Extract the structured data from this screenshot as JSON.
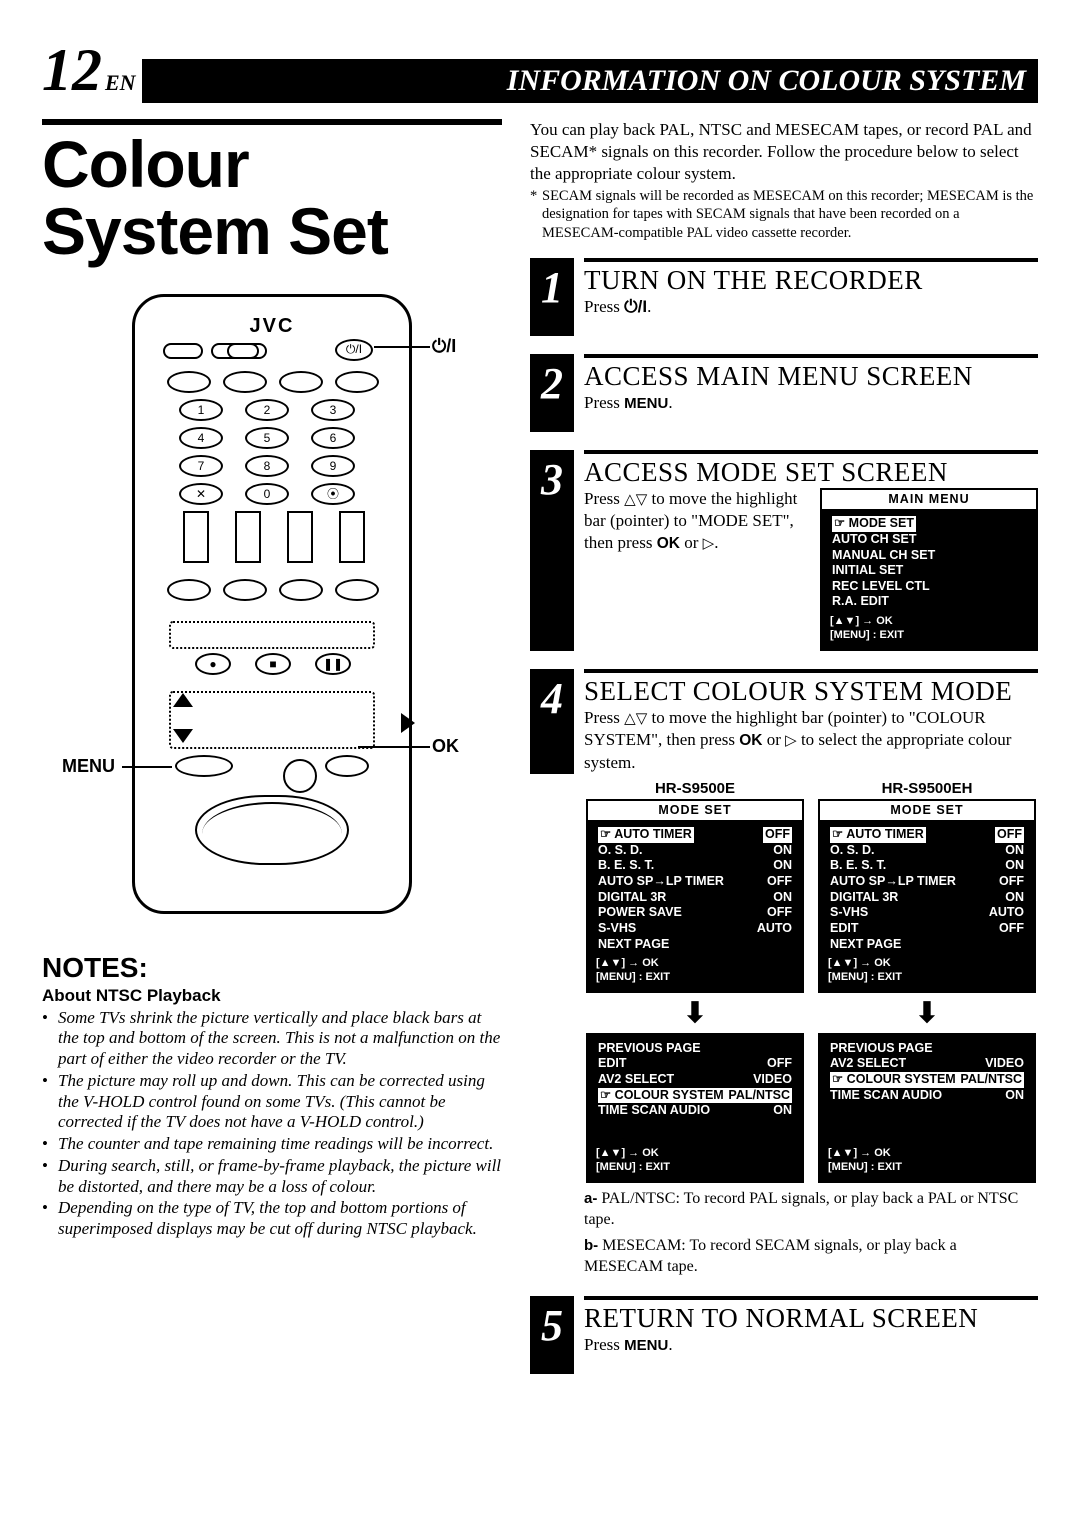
{
  "header": {
    "page_num": "12",
    "page_suffix": "EN",
    "title_bar": "INFORMATION ON COLOUR SYSTEM"
  },
  "left": {
    "main_title_l1": "Colour",
    "main_title_l2": "System Set",
    "brand": "JVC",
    "callout_power": "⏻/I",
    "callout_ok": "OK",
    "callout_menu": "MENU",
    "numpad": [
      "1",
      "2",
      "3",
      "4",
      "5",
      "6",
      "7",
      "8",
      "9",
      "✕",
      "0",
      "⦿"
    ],
    "notes_heading": "NOTES:",
    "notes_sub": "About NTSC Playback",
    "notes": [
      "Some TVs shrink the picture vertically and place black bars at the top and bottom of the screen. This is not a malfunction on the part of either the video recorder or the TV.",
      "The picture may roll up and down. This can be corrected using the V-HOLD control found on some TVs. (This cannot be corrected if the TV does not have a V-HOLD control.)",
      "The counter and tape remaining time readings will be incorrect.",
      "During search, still, or frame-by-frame playback, the picture will be distorted, and there may be a loss of colour.",
      "Depending on the type of TV, the top and bottom portions of superimposed displays may be cut off during NTSC playback."
    ]
  },
  "right": {
    "intro": "You can play back PAL, NTSC and MESECAM tapes, or record PAL and SECAM* signals on this recorder. Follow the procedure below to select the appropriate colour system.",
    "footnote": "SECAM signals will be recorded as MESECAM on this recorder; MESECAM is the designation for tapes with SECAM signals that have been recorded on a MESECAM-compatible PAL video cassette recorder.",
    "step1": {
      "num": "1",
      "title": "TURN ON THE RECORDER",
      "text_pre": "Press ",
      "icon": "⏻/I",
      "text_post": "."
    },
    "step2": {
      "num": "2",
      "title": "ACCESS MAIN MENU SCREEN",
      "text_pre": "Press ",
      "menu": "MENU",
      "text_post": "."
    },
    "step3": {
      "num": "3",
      "title": "ACCESS MODE SET SCREEN",
      "text": "Press △▽ to move the highlight bar (pointer) to \"MODE SET\", then press OK or ▷.",
      "osd": {
        "title": "MAIN MENU",
        "items": [
          "MODE SET",
          "AUTO CH SET",
          "MANUAL CH SET",
          "INITIAL SET",
          "REC LEVEL CTL",
          "R.A. EDIT"
        ],
        "foot1": "[▲▼] → OK",
        "foot2": "[MENU] : EXIT"
      }
    },
    "step4": {
      "num": "4",
      "title": "SELECT COLOUR SYSTEM MODE",
      "text": "Press △▽ to move the highlight bar (pointer) to \"COLOUR SYSTEM\", then press OK or ▷ to select the appropriate colour system.",
      "model_a": "HR-S9500E",
      "model_b": "HR-S9500EH",
      "osd_a1": {
        "title": "MODE SET",
        "rows": [
          [
            "AUTO TIMER",
            "OFF"
          ],
          [
            "O. S. D.",
            "ON"
          ],
          [
            "B. E. S. T.",
            "ON"
          ],
          [
            "AUTO SP→LP TIMER",
            "OFF"
          ],
          [
            "DIGITAL 3R",
            "ON"
          ],
          [
            "POWER SAVE",
            "OFF"
          ],
          [
            "S-VHS",
            "AUTO"
          ],
          [
            "NEXT PAGE",
            ""
          ]
        ],
        "hl_index": 0,
        "foot1": "[▲▼] → OK",
        "foot2": "[MENU] : EXIT"
      },
      "osd_a2": {
        "rows": [
          [
            "PREVIOUS PAGE",
            ""
          ],
          [
            "EDIT",
            "OFF"
          ],
          [
            "AV2 SELECT",
            "VIDEO"
          ],
          [
            "COLOUR SYSTEM",
            "PAL/NTSC"
          ],
          [
            "TIME SCAN AUDIO",
            "ON"
          ]
        ],
        "hl_index": 3,
        "foot1": "[▲▼] → OK",
        "foot2": "[MENU] : EXIT"
      },
      "osd_b1": {
        "title": "MODE SET",
        "rows": [
          [
            "AUTO TIMER",
            "OFF"
          ],
          [
            "O. S. D.",
            "ON"
          ],
          [
            "B. E. S. T.",
            "ON"
          ],
          [
            "AUTO SP→LP TIMER",
            "OFF"
          ],
          [
            "DIGITAL 3R",
            "ON"
          ],
          [
            "S-VHS",
            "AUTO"
          ],
          [
            "EDIT",
            "OFF"
          ],
          [
            "NEXT PAGE",
            ""
          ]
        ],
        "hl_index": 0,
        "foot1": "[▲▼] → OK",
        "foot2": "[MENU] : EXIT"
      },
      "osd_b2": {
        "rows": [
          [
            "PREVIOUS PAGE",
            ""
          ],
          [
            "AV2 SELECT",
            "VIDEO"
          ],
          [
            "COLOUR SYSTEM",
            "PAL/NTSC"
          ],
          [
            "TIME SCAN AUDIO",
            "ON"
          ]
        ],
        "hl_index": 2,
        "foot1": "[▲▼] → OK",
        "foot2": "[MENU] : EXIT"
      },
      "explain_a_label": "a-",
      "explain_a_key": "PAL/NTSC:",
      "explain_a_text": "To record PAL signals, or play back a PAL or NTSC tape.",
      "explain_b_label": "b-",
      "explain_b_key": "MESECAM:",
      "explain_b_text": "To record SECAM signals, or play back a MESECAM tape."
    },
    "step5": {
      "num": "5",
      "title": "RETURN TO NORMAL SCREEN",
      "text_pre": "Press ",
      "menu": "MENU",
      "text_post": "."
    }
  }
}
